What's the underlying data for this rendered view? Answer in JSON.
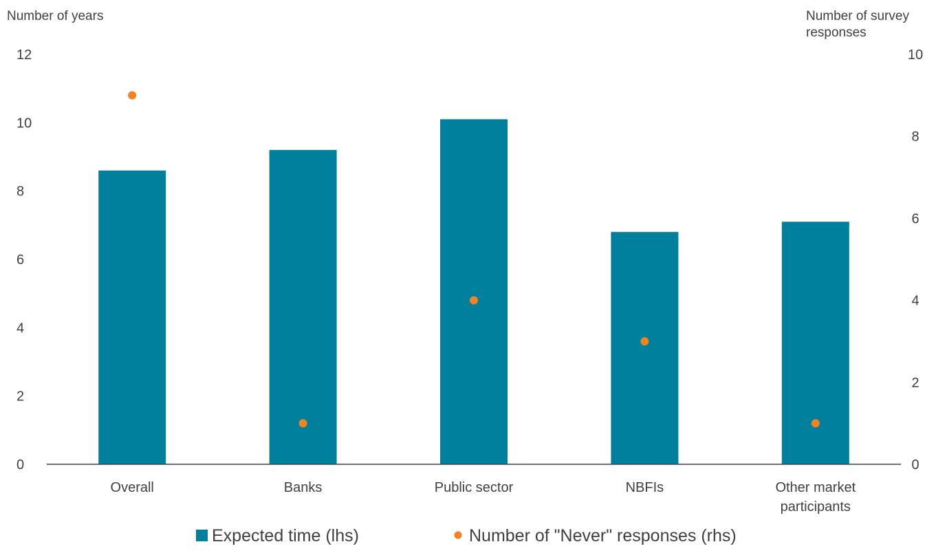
{
  "chart_data": {
    "type": "bar",
    "categories": [
      [
        "Overall"
      ],
      [
        "Banks"
      ],
      [
        "Public sector"
      ],
      [
        "NBFIs"
      ],
      [
        "Other market",
        "participants"
      ]
    ],
    "series": [
      {
        "name": "Expected time (lhs)",
        "type": "bar",
        "axis": "left",
        "color": "#00809D",
        "values": [
          8.6,
          9.2,
          10.1,
          6.8,
          7.1
        ]
      },
      {
        "name": "Number of \"Never\" responses (rhs)",
        "type": "scatter",
        "axis": "right",
        "color": "#F58220",
        "values": [
          9,
          1,
          4,
          3,
          1
        ]
      }
    ],
    "y_left": {
      "label": [
        "Number of years"
      ],
      "ylim": [
        0,
        12
      ],
      "ticks": [
        0,
        2,
        4,
        6,
        8,
        10,
        12
      ]
    },
    "y_right": {
      "label": [
        "Number of survey",
        "responses"
      ],
      "ylim": [
        0,
        10
      ],
      "ticks": [
        0,
        2,
        4,
        6,
        8,
        10
      ]
    },
    "grid": false,
    "legend_position": "bottom"
  }
}
